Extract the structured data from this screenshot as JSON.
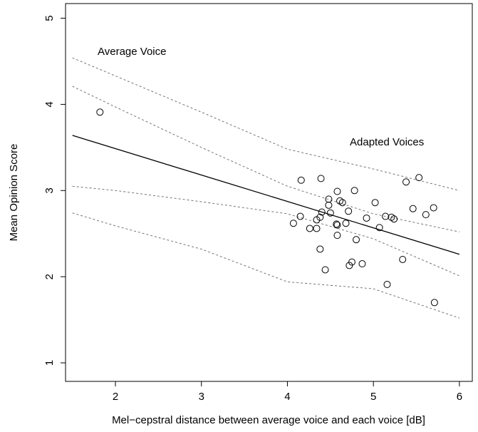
{
  "chart_data": {
    "type": "scatter",
    "xlabel": "Mel−cepstral distance between average voice and each voice [dB]",
    "ylabel": "Mean Opinion Score",
    "annotations": [
      "Average Voice",
      "Adapted Voices"
    ],
    "xlim": [
      1.42,
      6.15
    ],
    "ylim": [
      0.785,
      5.17
    ],
    "xticks": [
      2,
      3,
      4,
      5,
      6
    ],
    "yticks": [
      1,
      2,
      3,
      4,
      5
    ],
    "color": "#000000",
    "points": {
      "x": [
        1.82,
        4.16,
        4.39,
        5.53,
        5.38,
        4.58,
        4.78,
        4.48,
        4.61,
        4.64,
        5.02,
        5.46,
        5.7,
        5.61,
        4.48,
        4.5,
        4.38,
        4.4,
        4.15,
        4.34,
        4.71,
        4.07,
        5.14,
        5.21,
        5.24,
        4.92,
        4.57,
        4.58,
        4.68,
        5.07,
        4.26,
        4.34,
        4.58,
        4.8,
        4.38,
        4.75,
        4.72,
        4.87,
        5.34,
        4.44,
        5.16,
        5.71
      ],
      "y": [
        3.91,
        3.12,
        3.14,
        3.15,
        3.1,
        2.99,
        3.0,
        2.9,
        2.88,
        2.86,
        2.86,
        2.79,
        2.8,
        2.72,
        2.83,
        2.74,
        2.69,
        2.75,
        2.7,
        2.66,
        2.76,
        2.62,
        2.7,
        2.69,
        2.67,
        2.68,
        2.61,
        2.6,
        2.62,
        2.57,
        2.56,
        2.56,
        2.48,
        2.43,
        2.32,
        2.17,
        2.13,
        2.15,
        2.2,
        2.08,
        1.91,
        1.7
      ]
    },
    "fit_line": {
      "x": [
        1.5,
        6
      ],
      "y": [
        3.64,
        2.26
      ]
    },
    "bands": [
      {
        "x": [
          1.5,
          2,
          3,
          4,
          5,
          6
        ],
        "y": [
          4.54,
          4.33,
          3.91,
          3.48,
          3.25,
          3.0
        ]
      },
      {
        "x": [
          1.5,
          2,
          3,
          4,
          5,
          6
        ],
        "y": [
          4.21,
          3.97,
          3.5,
          3.05,
          2.73,
          2.52
        ]
      },
      {
        "x": [
          1.5,
          2,
          3,
          4,
          5,
          6
        ],
        "y": [
          3.05,
          3.0,
          2.87,
          2.73,
          2.44,
          2.01
        ]
      },
      {
        "x": [
          1.5,
          2,
          3,
          4,
          5,
          6
        ],
        "y": [
          2.74,
          2.59,
          2.32,
          1.94,
          1.86,
          1.52
        ]
      }
    ]
  }
}
